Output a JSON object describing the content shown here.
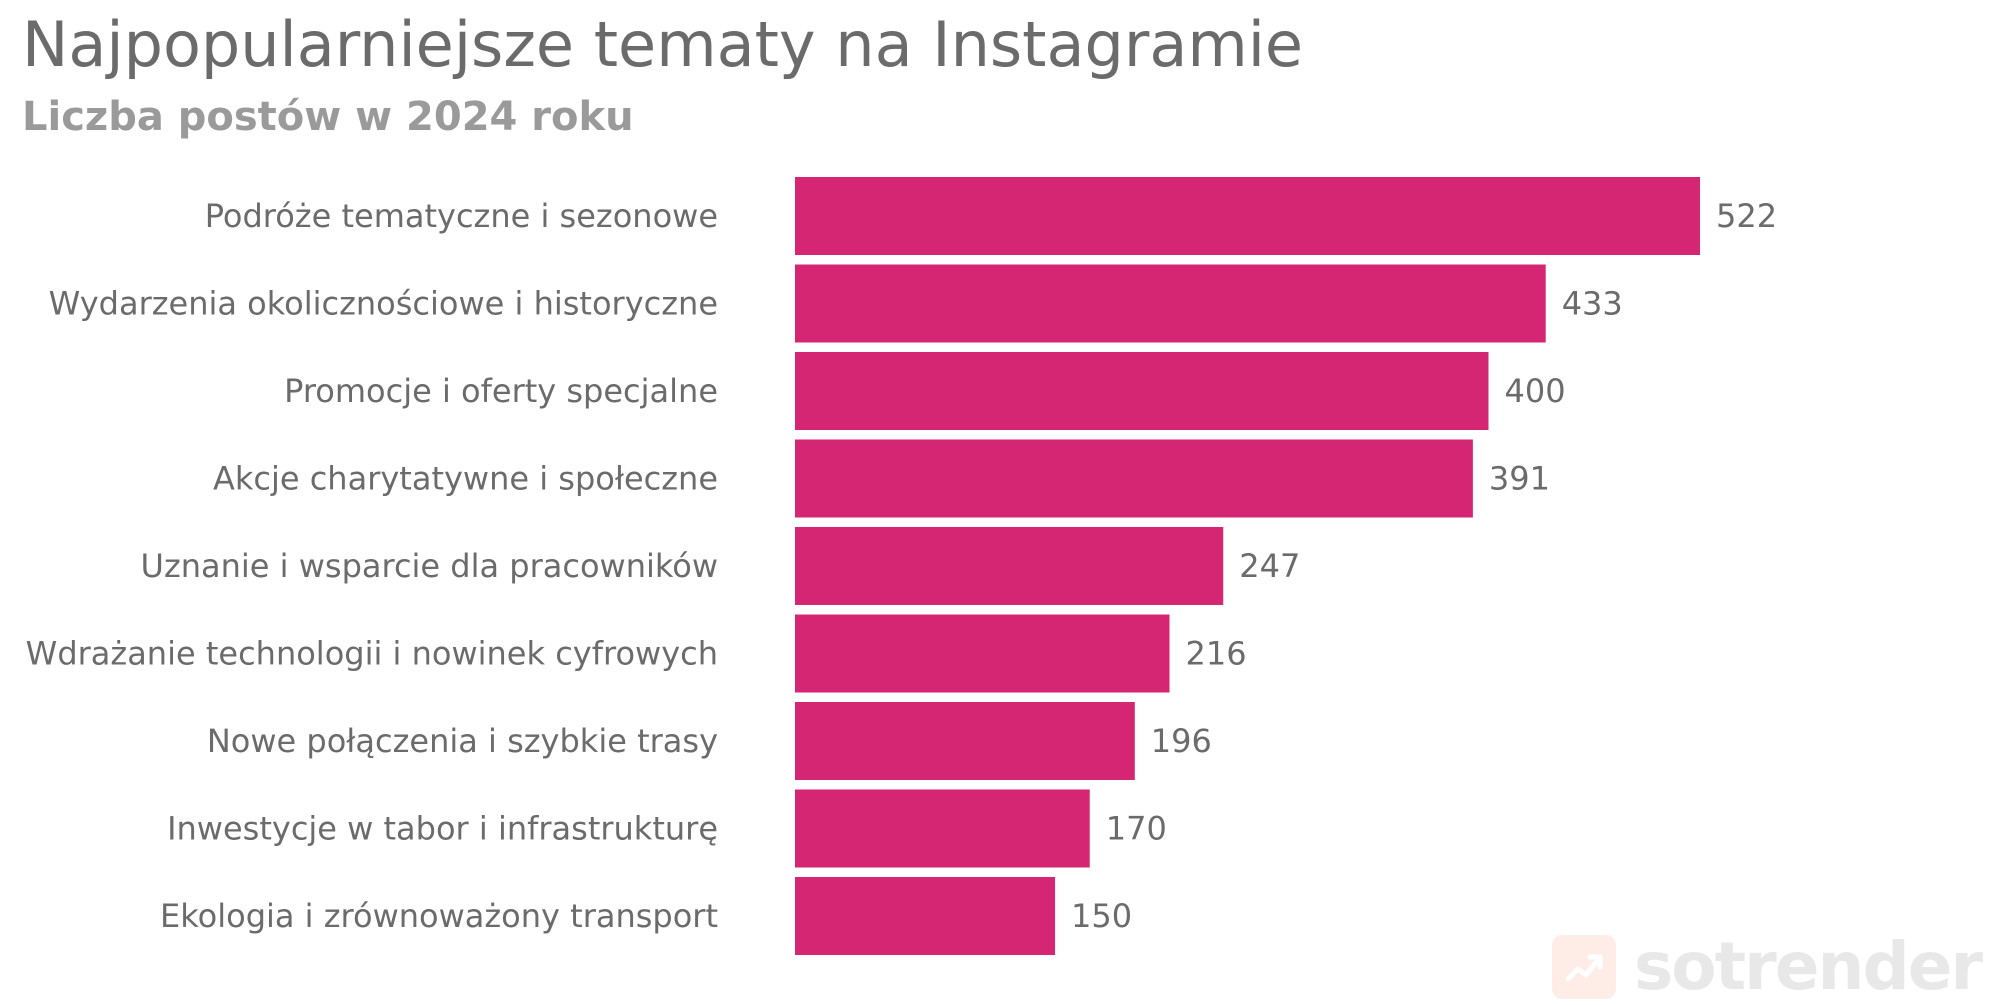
{
  "chart_data": {
    "type": "bar",
    "orientation": "horizontal",
    "title": "Najpopularniejsze tematy na Instagramie",
    "subtitle": "Liczba postów w 2024 roku",
    "categories": [
      "Podróże tematyczne i sezonowe",
      "Wydarzenia okolicznościowe i historyczne",
      "Promocje i oferty specjalne",
      "Akcje charytatywne i społeczne",
      "Uznanie i wsparcie dla pracowników",
      "Wdrażanie technologii i nowinek cyfrowych",
      "Nowe połączenia i szybkie trasy",
      "Inwestycje w tabor i infrastrukturę",
      "Ekologia i zrównoważony transport"
    ],
    "values": [
      522,
      433,
      400,
      391,
      247,
      216,
      196,
      170,
      150
    ],
    "xlim": [
      0,
      522
    ],
    "bar_color": "#d42673",
    "grid": false,
    "data_labels": true
  },
  "watermark": {
    "text": "sotrender",
    "icon": "trend-up-chart-icon"
  }
}
